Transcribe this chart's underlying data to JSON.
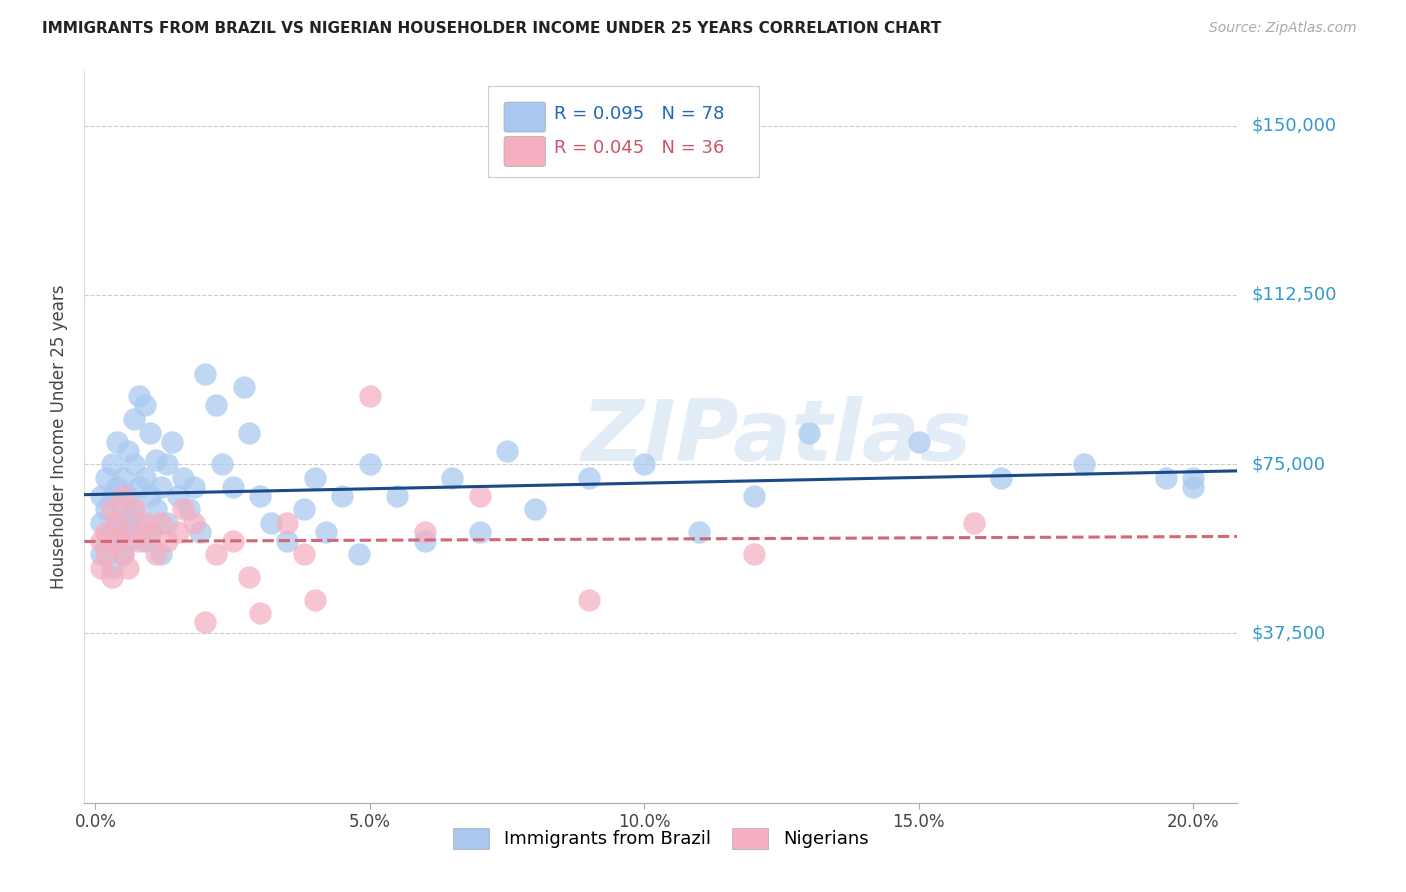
{
  "title": "IMMIGRANTS FROM BRAZIL VS NIGERIAN HOUSEHOLDER INCOME UNDER 25 YEARS CORRELATION CHART",
  "source": "Source: ZipAtlas.com",
  "ylabel": "Householder Income Under 25 years",
  "ytick_labels": [
    "$37,500",
    "$75,000",
    "$112,500",
    "$150,000"
  ],
  "ytick_vals": [
    37500,
    75000,
    112500,
    150000
  ],
  "ylim": [
    0,
    162000
  ],
  "xlim": [
    -0.002,
    0.208
  ],
  "xtick_vals": [
    0.0,
    0.05,
    0.1,
    0.15,
    0.2
  ],
  "xtick_labels": [
    "0.0%",
    "5.0%",
    "10.0%",
    "15.0%",
    "20.0%"
  ],
  "brazil_color": "#a8c8f0",
  "nigeria_color": "#f5afc0",
  "brazil_line_color": "#1a4a8a",
  "nigeria_line_color": "#d06878",
  "brazil_label": "Immigrants from Brazil",
  "nigeria_label": "Nigerians",
  "watermark": "ZIPatlas",
  "brazil_x": [
    0.001,
    0.001,
    0.001,
    0.002,
    0.002,
    0.002,
    0.003,
    0.003,
    0.003,
    0.003,
    0.004,
    0.004,
    0.004,
    0.004,
    0.005,
    0.005,
    0.005,
    0.005,
    0.006,
    0.006,
    0.006,
    0.006,
    0.007,
    0.007,
    0.007,
    0.008,
    0.008,
    0.008,
    0.009,
    0.009,
    0.009,
    0.01,
    0.01,
    0.01,
    0.011,
    0.011,
    0.012,
    0.012,
    0.013,
    0.013,
    0.014,
    0.015,
    0.016,
    0.017,
    0.018,
    0.019,
    0.02,
    0.022,
    0.023,
    0.025,
    0.027,
    0.028,
    0.03,
    0.032,
    0.035,
    0.038,
    0.04,
    0.042,
    0.045,
    0.048,
    0.05,
    0.055,
    0.06,
    0.065,
    0.07,
    0.075,
    0.08,
    0.09,
    0.1,
    0.11,
    0.12,
    0.13,
    0.15,
    0.165,
    0.18,
    0.195,
    0.2,
    0.2
  ],
  "brazil_y": [
    62000,
    68000,
    55000,
    72000,
    58000,
    65000,
    60000,
    75000,
    52000,
    68000,
    70000,
    62000,
    58000,
    80000,
    65000,
    72000,
    60000,
    55000,
    78000,
    68000,
    62000,
    58000,
    85000,
    75000,
    65000,
    90000,
    70000,
    62000,
    88000,
    72000,
    58000,
    82000,
    68000,
    60000,
    76000,
    65000,
    70000,
    55000,
    75000,
    62000,
    80000,
    68000,
    72000,
    65000,
    70000,
    60000,
    95000,
    88000,
    75000,
    70000,
    92000,
    82000,
    68000,
    62000,
    58000,
    65000,
    72000,
    60000,
    68000,
    55000,
    75000,
    68000,
    58000,
    72000,
    60000,
    78000,
    65000,
    72000,
    75000,
    60000,
    68000,
    82000,
    80000,
    72000,
    75000,
    72000,
    70000,
    72000
  ],
  "nigeria_x": [
    0.001,
    0.001,
    0.002,
    0.002,
    0.003,
    0.003,
    0.004,
    0.004,
    0.005,
    0.005,
    0.006,
    0.006,
    0.007,
    0.008,
    0.009,
    0.01,
    0.011,
    0.012,
    0.013,
    0.015,
    0.016,
    0.018,
    0.02,
    0.022,
    0.025,
    0.028,
    0.03,
    0.035,
    0.038,
    0.04,
    0.05,
    0.06,
    0.07,
    0.09,
    0.12,
    0.16
  ],
  "nigeria_y": [
    58000,
    52000,
    60000,
    55000,
    65000,
    50000,
    62000,
    58000,
    68000,
    55000,
    60000,
    52000,
    65000,
    58000,
    62000,
    60000,
    55000,
    62000,
    58000,
    60000,
    65000,
    62000,
    40000,
    55000,
    58000,
    50000,
    42000,
    62000,
    55000,
    45000,
    90000,
    60000,
    68000,
    45000,
    55000,
    62000
  ]
}
